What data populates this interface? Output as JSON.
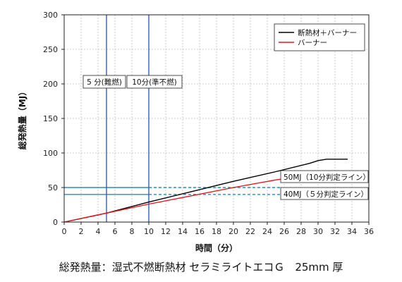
{
  "chart_data": {
    "type": "line",
    "xlabel": "時間（分）",
    "ylabel": "総発熱量（MJ）",
    "xlim": [
      0,
      36
    ],
    "ylim": [
      0,
      300
    ],
    "xticks": [
      0,
      2,
      4,
      6,
      8,
      10,
      12,
      14,
      16,
      18,
      20,
      22,
      24,
      26,
      28,
      30,
      32,
      34,
      36
    ],
    "yticks": [
      0,
      50,
      100,
      150,
      200,
      250,
      300
    ],
    "grid": true,
    "legend_placement": "top-right",
    "series": [
      {
        "name": "断熱材＋バーナー",
        "color": "#000000",
        "x": [
          0,
          5,
          10,
          15,
          20,
          25,
          29,
          30,
          31,
          33.5
        ],
        "y": [
          0,
          13,
          29,
          44,
          59,
          73,
          85,
          89,
          91,
          91
        ]
      },
      {
        "name": "バーナー",
        "color": "#e8141b",
        "x": [
          0,
          5,
          10,
          15,
          20,
          25,
          29,
          30,
          31,
          33.5
        ],
        "y": [
          0,
          13,
          26,
          38,
          50,
          61,
          68,
          72,
          72,
          72
        ]
      }
    ],
    "annotations": {
      "vlines": [
        {
          "x": 5,
          "label": "5 分(難燃)",
          "color": "#2e63b8"
        },
        {
          "x": 10,
          "label": "10分(準不燃)",
          "color": "#2e63b8"
        }
      ],
      "hlines": [
        {
          "y": 50,
          "label": "50MJ（10分判定ライン）",
          "color": "#1f8fc9"
        },
        {
          "y": 40,
          "label": "40MJ（５分判定ライン）",
          "color": "#1f8fc9"
        }
      ]
    }
  },
  "caption": "総発熱量：湿式不燃断熱材 セラミライトエコＧ　25mm 厚"
}
